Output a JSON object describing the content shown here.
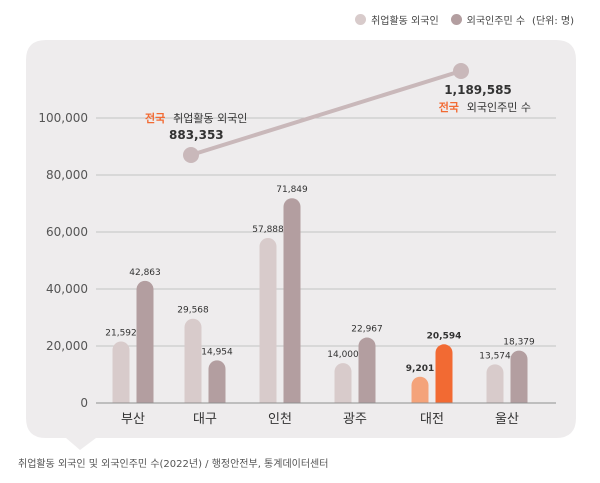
{
  "legend": {
    "employed_label": "취업활동 외국인",
    "resident_label": "외국인주민 수",
    "unit": "(단위: 명)"
  },
  "colors": {
    "panel": "#eeeced",
    "employed": "#d8cbcb",
    "resident": "#b39ea0",
    "highlight_employed": "#f4a37a",
    "highlight_resident": "#f26a33",
    "trend": "#c9b8ba",
    "accent_text": "#f26a33"
  },
  "chart_data": {
    "type": "bar",
    "categories": [
      "부산",
      "대구",
      "인천",
      "광주",
      "대전",
      "울산"
    ],
    "series": [
      {
        "name": "취업활동 외국인",
        "values": [
          21592,
          29568,
          57888,
          14000,
          9201,
          13574
        ]
      },
      {
        "name": "외국인주민 수",
        "values": [
          42863,
          14954,
          71849,
          22967,
          20594,
          18379
        ]
      }
    ],
    "value_labels": [
      [
        "21,592",
        "29,568",
        "57,888",
        "14,000",
        "9,201",
        "13,574"
      ],
      [
        "42,863",
        "14,954",
        "71,849",
        "22,967",
        "20,594",
        "18,379"
      ]
    ],
    "highlight_category": "대전",
    "ylim": [
      0,
      120000
    ],
    "yticks": [
      0,
      20000,
      40000,
      60000,
      80000,
      100000
    ],
    "ytick_labels": [
      "0",
      "20,000",
      "40,000",
      "60,000",
      "80,000",
      "100,000"
    ],
    "grid": true,
    "national": {
      "employed": {
        "prefix": "전국",
        "label": "취업활동 외국인",
        "value": 883353,
        "value_label": "883,353"
      },
      "resident": {
        "prefix": "전국",
        "label": "외국인주민 수",
        "value": 1189585,
        "value_label": "1,189,585"
      }
    }
  },
  "source": "취업활동 외국인 및 외국인주민 수(2022년) / 행정안전부, 통계데이터센터"
}
